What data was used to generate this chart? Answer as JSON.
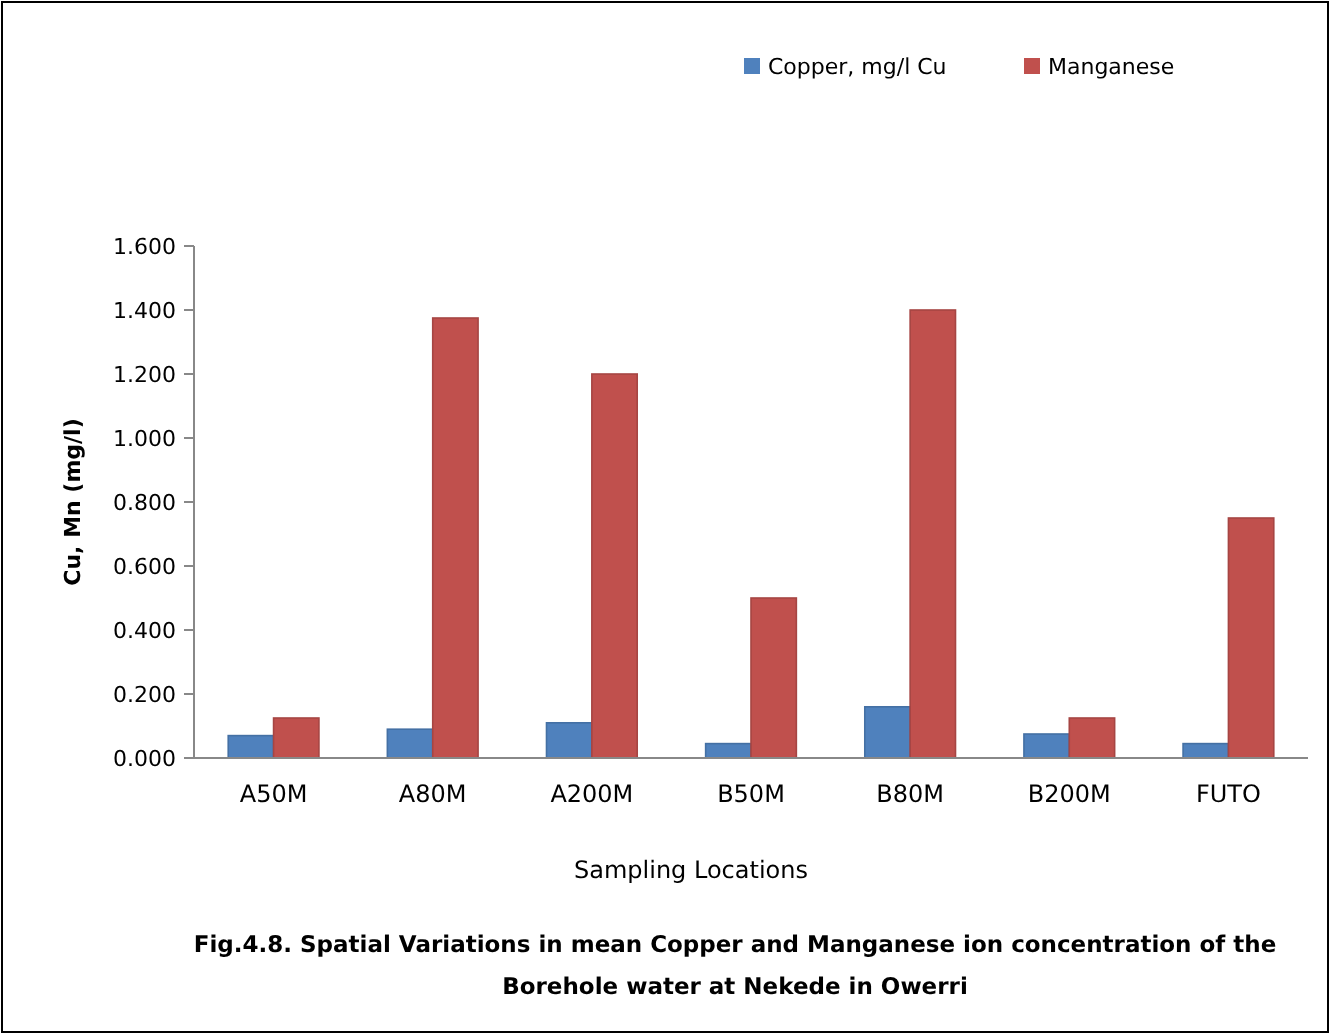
{
  "chart_data": {
    "type": "bar",
    "title": "Fig.4.8. Spatial Variations in mean Copper and Manganese ion concentration of the Borehole water at Nekede in Owerri",
    "xlabel": "Sampling Locations",
    "ylabel": "Cu, Mn (mg/l)",
    "categories": [
      "A50M",
      "A80M",
      "A200M",
      "B50M",
      "B80M",
      "B200M",
      "FUTO"
    ],
    "series": [
      {
        "name": "Copper, mg/l Cu",
        "color": "#4f81bd",
        "values": [
          0.07,
          0.09,
          0.11,
          0.045,
          0.16,
          0.075,
          0.045
        ]
      },
      {
        "name": "Manganese",
        "color": "#c0504d",
        "values": [
          0.125,
          1.375,
          1.2,
          0.5,
          1.4,
          0.125,
          0.75
        ]
      }
    ],
    "ylim": [
      0,
      1.6
    ],
    "yticks": [
      {
        "value": 0,
        "label": "0.000"
      },
      {
        "value": 0.2,
        "label": "0.200"
      },
      {
        "value": 0.4,
        "label": "0.400"
      },
      {
        "value": 0.6,
        "label": "0.600"
      },
      {
        "value": 0.8,
        "label": "0.800"
      },
      {
        "value": 1,
        "label": "1.000"
      },
      {
        "value": 1.2,
        "label": "1.200"
      },
      {
        "value": 1.4,
        "label": "1.400"
      },
      {
        "value": 1.6,
        "label": "1.600"
      }
    ],
    "legend": "top right",
    "grid": false
  }
}
